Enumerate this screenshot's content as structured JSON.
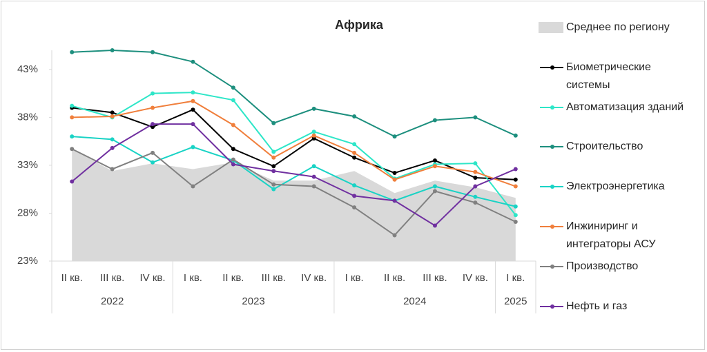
{
  "chart_data": {
    "type": "line",
    "title": "Африка",
    "categories": [
      "II кв.",
      "III кв.",
      "IV кв.",
      "I кв.",
      "II кв.",
      "III кв.",
      "IV кв.",
      "I кв.",
      "II кв.",
      "III кв.",
      "IV кв.",
      "I кв."
    ],
    "year_groups": [
      {
        "label": "2022",
        "span": 3
      },
      {
        "label": "2023",
        "span": 4
      },
      {
        "label": "2024",
        "span": 4
      },
      {
        "label": "2025",
        "span": 1
      }
    ],
    "ylim": [
      23,
      45
    ],
    "yticks": [
      {
        "value": 23,
        "label": "23%"
      },
      {
        "value": 28,
        "label": "28%"
      },
      {
        "value": 33,
        "label": "33%"
      },
      {
        "value": 38,
        "label": "38%"
      },
      {
        "value": 43,
        "label": "43%"
      }
    ],
    "area": {
      "name": "Среднее по региону",
      "color": "#d9d9d9",
      "values": [
        34.7,
        32.4,
        33.2,
        32.6,
        33.3,
        31.4,
        31.4,
        32.4,
        30.1,
        31.4,
        30.7,
        29.6
      ]
    },
    "series": [
      {
        "name": "Биометрические системы",
        "color": "#000000",
        "values": [
          39.0,
          38.5,
          37.0,
          38.8,
          34.7,
          32.9,
          35.8,
          33.8,
          32.2,
          33.5,
          31.7,
          31.5
        ]
      },
      {
        "name": "Автоматизация зданий",
        "color": "#2ee6c8",
        "values": [
          39.2,
          38.0,
          40.5,
          40.6,
          39.8,
          34.4,
          36.5,
          35.2,
          31.6,
          33.1,
          33.2,
          27.8
        ]
      },
      {
        "name": "Строительство",
        "color": "#1d8f7e",
        "values": [
          44.8,
          45.0,
          44.8,
          43.8,
          41.1,
          37.4,
          38.9,
          38.1,
          36.0,
          37.7,
          38.0,
          36.1
        ]
      },
      {
        "name": "Электроэнергетика",
        "color": "#19d3c5",
        "values": [
          36.0,
          35.7,
          33.3,
          34.9,
          33.5,
          30.5,
          32.9,
          30.9,
          29.3,
          30.8,
          29.7,
          28.7
        ]
      },
      {
        "name": "Инжиниринг и интеграторы АСУ",
        "color": "#f07f3c",
        "values": [
          38.0,
          38.1,
          39.0,
          39.7,
          37.2,
          33.8,
          36.1,
          34.3,
          31.5,
          32.9,
          32.3,
          30.8
        ]
      },
      {
        "name": "Производство",
        "color": "#808080",
        "values": [
          34.7,
          32.6,
          34.3,
          30.8,
          33.6,
          31.0,
          30.8,
          28.6,
          25.7,
          30.3,
          29.1,
          27.1
        ]
      },
      {
        "name": "Нефть и газ",
        "color": "#7030a0",
        "values": [
          31.3,
          34.8,
          37.3,
          37.3,
          33.1,
          32.4,
          31.8,
          29.8,
          29.3,
          26.7,
          30.8,
          32.6
        ]
      }
    ]
  }
}
